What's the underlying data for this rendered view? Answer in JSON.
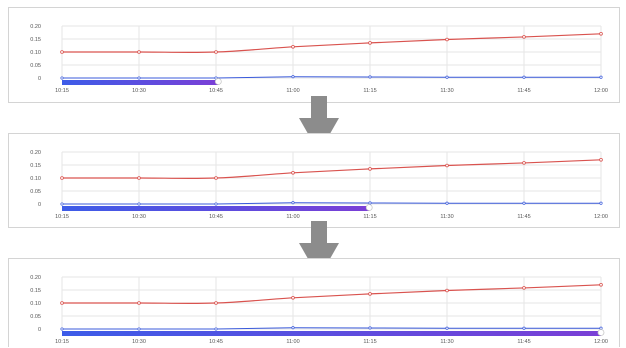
{
  "colors": {
    "line": "#d9534f",
    "baseline": "#3b5bdb",
    "gridline": "#e6e6e6",
    "tick_text": "#555555",
    "progress_start": "#3d5ce8",
    "progress_end": "#7a3fd6",
    "arrow": "#8c8c8c"
  },
  "chart_data": [
    {
      "type": "line",
      "title": "",
      "xlabel": "",
      "ylabel": "",
      "x_ticks": [
        "10:15",
        "10:30",
        "10:45",
        "11:00",
        "11:15",
        "11:30",
        "11:45",
        "12:00"
      ],
      "y_ticks": [
        "0.20",
        "0.15",
        "0.10",
        "0.05",
        "0"
      ],
      "ylim": [
        0,
        0.2
      ],
      "grid": true,
      "series": [
        {
          "values": [
            0.1,
            0.1,
            0.1,
            0.12,
            0.135,
            0.148,
            0.158,
            0.17
          ]
        },
        {
          "values": [
            0.0,
            0.0,
            0.0,
            0.005,
            0.004,
            0.003,
            0.003,
            0.003
          ]
        }
      ],
      "progress": 0.29
    },
    {
      "type": "line",
      "title": "",
      "xlabel": "",
      "ylabel": "",
      "x_ticks": [
        "10:15",
        "10:30",
        "10:45",
        "11:00",
        "11:15",
        "11:30",
        "11:45",
        "12:00"
      ],
      "y_ticks": [
        "0.20",
        "0.15",
        "0.10",
        "0.05",
        "0"
      ],
      "ylim": [
        0,
        0.2
      ],
      "grid": true,
      "series": [
        {
          "values": [
            0.1,
            0.1,
            0.1,
            0.12,
            0.135,
            0.148,
            0.158,
            0.17
          ]
        },
        {
          "values": [
            0.0,
            0.0,
            0.0,
            0.005,
            0.004,
            0.003,
            0.003,
            0.003
          ]
        }
      ],
      "progress": 0.57
    },
    {
      "type": "line",
      "title": "",
      "xlabel": "",
      "ylabel": "",
      "x_ticks": [
        "10:15",
        "10:30",
        "10:45",
        "11:00",
        "11:15",
        "11:30",
        "11:45",
        "12:00"
      ],
      "y_ticks": [
        "0.20",
        "0.15",
        "0.10",
        "0.05",
        "0"
      ],
      "ylim": [
        0,
        0.2
      ],
      "grid": true,
      "series": [
        {
          "values": [
            0.1,
            0.1,
            0.1,
            0.12,
            0.135,
            0.148,
            0.158,
            0.17
          ]
        },
        {
          "values": [
            0.0,
            0.0,
            0.0,
            0.005,
            0.004,
            0.003,
            0.003,
            0.003
          ]
        }
      ],
      "progress": 1.0
    }
  ]
}
